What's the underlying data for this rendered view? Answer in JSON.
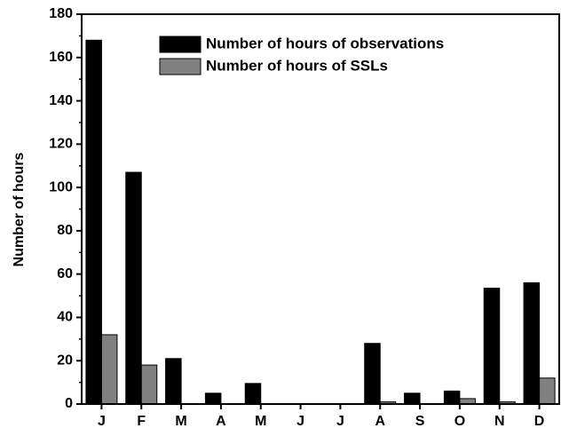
{
  "chart_data": {
    "type": "bar",
    "y_label": "Number of hours",
    "categories": [
      "J",
      "F",
      "M",
      "A",
      "M",
      "J",
      "J",
      "A",
      "S",
      "O",
      "N",
      "D"
    ],
    "series": [
      {
        "name": "Number of hours of observations",
        "color": "#000000",
        "values": [
          168,
          107,
          21,
          5,
          9.5,
          0,
          0,
          28,
          5,
          6,
          53.5,
          56
        ]
      },
      {
        "name": "Number of hours of SSLs",
        "color": "#808080",
        "values": [
          32,
          18,
          0,
          0,
          0,
          0,
          0,
          1,
          0,
          2.5,
          1,
          12
        ]
      }
    ],
    "ylim": [
      0,
      180
    ],
    "yticks": [
      0,
      20,
      40,
      60,
      80,
      100,
      120,
      140,
      160,
      180
    ],
    "legend": "upper-right"
  }
}
